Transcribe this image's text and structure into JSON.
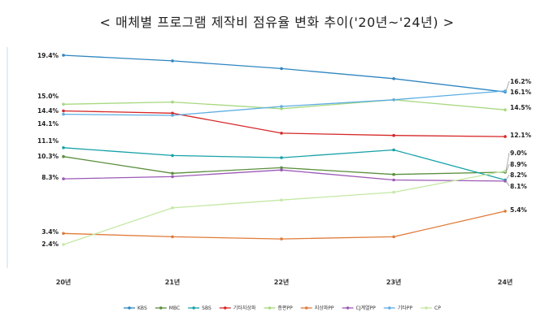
{
  "chart_data": {
    "type": "line",
    "title": "< 매체별 프로그램 제작비 점유율 변화 추이('20년~'24년) >",
    "categories": [
      "20년",
      "21년",
      "22년",
      "23년",
      "24년"
    ],
    "ylim": [
      0,
      22
    ],
    "grid": false,
    "legend": "bottom",
    "series": [
      {
        "name": "KBS",
        "color": "#2e86c1",
        "values": [
          19.4,
          18.9,
          18.2,
          17.3,
          16.1
        ],
        "start_label": "19.4%",
        "end_label": "16.1%"
      },
      {
        "name": "MBC",
        "color": "#5a8f3c",
        "values": [
          10.3,
          8.8,
          9.3,
          8.7,
          8.9
        ],
        "start_label": "10.3%",
        "end_label": "8.9%"
      },
      {
        "name": "SBS",
        "color": "#17a2a8",
        "values": [
          11.1,
          10.4,
          10.2,
          10.9,
          8.2
        ],
        "start_label": "11.1%",
        "end_label": "8.2%"
      },
      {
        "name": "기타지상파",
        "color": "#d62728",
        "values": [
          14.4,
          14.2,
          12.4,
          12.2,
          12.1
        ],
        "start_label": "14.4%",
        "end_label": "12.1%"
      },
      {
        "name": "종편PP",
        "color": "#a8d880",
        "values": [
          15.0,
          15.2,
          14.6,
          15.4,
          14.5
        ],
        "start_label": "15.0%",
        "end_label": "14.5%"
      },
      {
        "name": "지상파PP",
        "color": "#e07b39",
        "values": [
          3.4,
          3.1,
          2.9,
          3.1,
          5.4
        ],
        "start_label": "3.4%",
        "end_label": "5.4%"
      },
      {
        "name": "CJ계열PP",
        "color": "#9b59b6",
        "values": [
          8.3,
          8.5,
          9.1,
          8.2,
          8.1
        ],
        "start_label": "8.3%",
        "end_label": "8.1%"
      },
      {
        "name": "기타PP",
        "color": "#5dade2",
        "values": [
          14.1,
          14.0,
          14.8,
          15.4,
          16.2
        ],
        "start_label": "14.1%",
        "end_label": "16.2%"
      },
      {
        "name": "CP",
        "color": "#c5e8a5",
        "values": [
          2.4,
          5.7,
          6.4,
          7.1,
          9.0
        ],
        "start_label": "2.4%",
        "end_label": "9.0%"
      }
    ]
  }
}
